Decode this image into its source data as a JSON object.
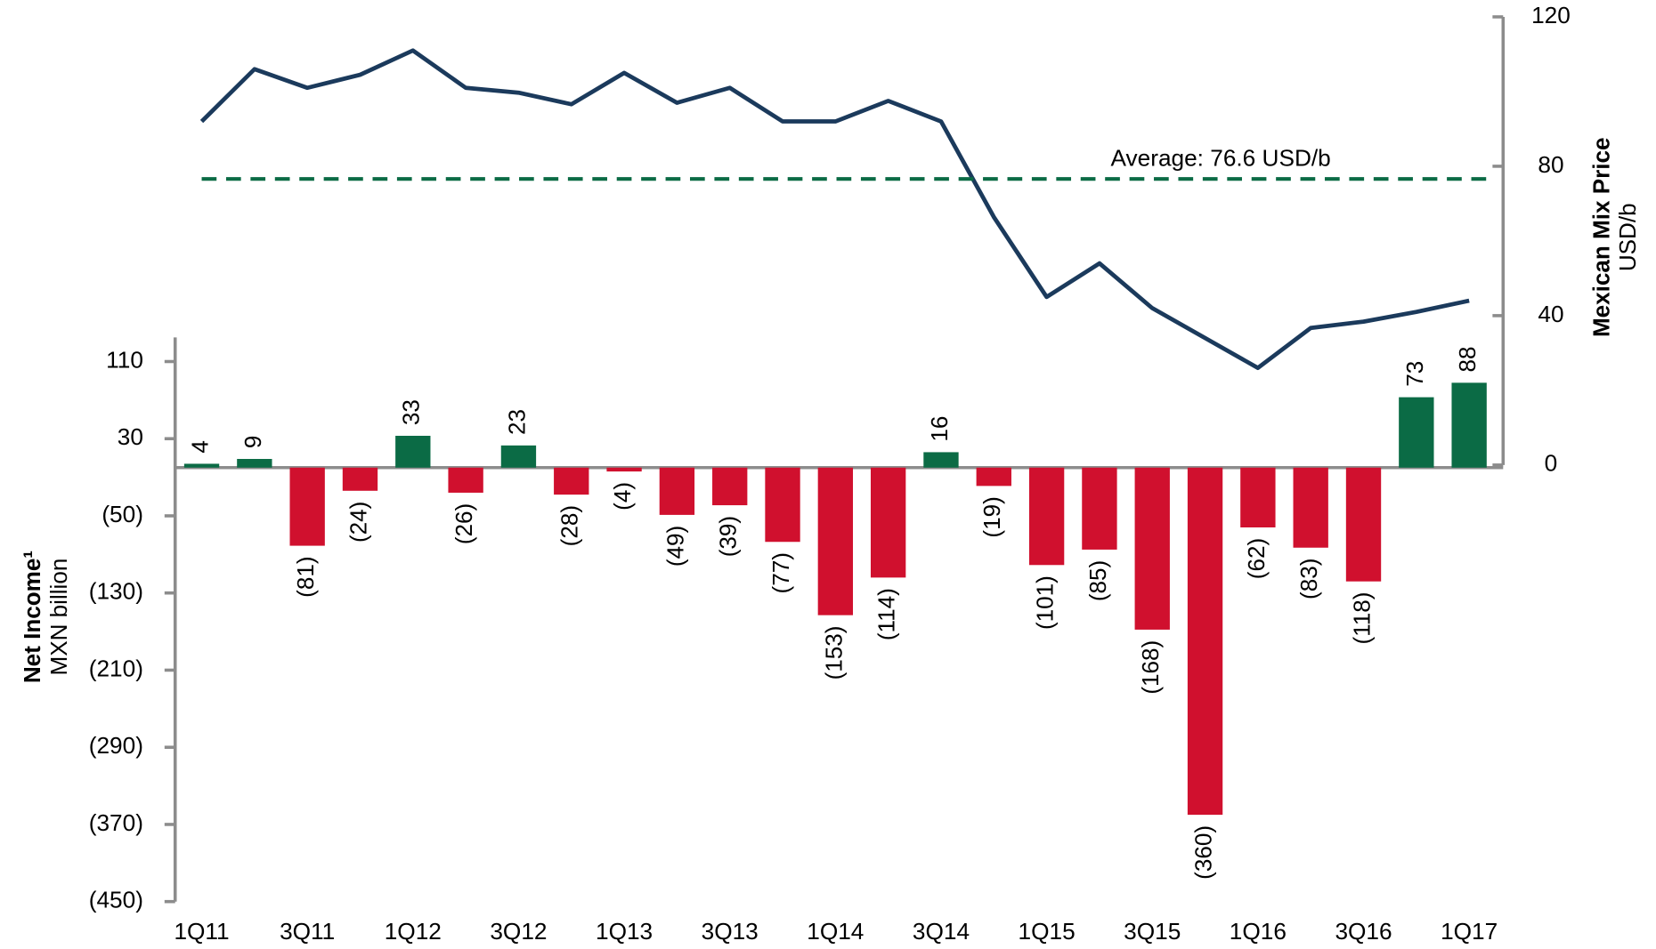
{
  "chart_data": {
    "type": "bar_line",
    "categories": [
      "1Q11",
      null,
      "3Q11",
      null,
      "1Q12",
      null,
      "3Q12",
      null,
      "1Q13",
      null,
      "3Q13",
      null,
      "1Q14",
      null,
      "3Q14",
      null,
      "1Q15",
      null,
      "3Q15",
      null,
      "1Q16",
      null,
      "3Q16",
      null,
      "1Q17"
    ],
    "series": [
      {
        "name": "Net Income",
        "type": "bar",
        "positive_color": "#0b6b45",
        "negative_color": "#d0102e",
        "values": [
          4,
          9,
          -81,
          -24,
          33,
          -26,
          23,
          -28,
          -4,
          -49,
          -39,
          -77,
          -153,
          -114,
          16,
          -19,
          -101,
          -85,
          -168,
          -360,
          -62,
          -83,
          -118,
          73,
          88
        ],
        "value_labels": [
          "4",
          "9",
          "(81)",
          "(24)",
          "33",
          "(26)",
          "23",
          "(28)",
          "(4)",
          "(49)",
          "(39)",
          "(77)",
          "(153)",
          "(114)",
          "16",
          "(19)",
          "(101)",
          "(85)",
          "(168)",
          "(360)",
          "(62)",
          "(83)",
          "(118)",
          "73",
          "88"
        ]
      },
      {
        "name": "Mexican Mix Price",
        "type": "line",
        "axis": "y2",
        "color": "#1b3a5c",
        "values": [
          92,
          106,
          101,
          104.5,
          111,
          101,
          99.7,
          96.6,
          105,
          97,
          101,
          92,
          92,
          97.5,
          92,
          66.4,
          45,
          54,
          42,
          34,
          26,
          36.7,
          38.4,
          41,
          44
        ]
      }
    ],
    "average": {
      "value": 76.6,
      "label": "Average: 76.6 USD/b",
      "color": "#0b6b45"
    },
    "y_title": "Net Income¹",
    "y_subtitle": "MXN billion",
    "y2_title": "Mexican Mix Price",
    "y2_subtitle": "USD/b",
    "ylim": [
      -450,
      135
    ],
    "yticks": [
      110,
      30,
      {
        "value": -50,
        "label": "(50)"
      },
      {
        "value": -130,
        "label": "(130)"
      },
      {
        "value": -210,
        "label": "(210)"
      },
      {
        "value": -290,
        "label": "(290)"
      },
      {
        "value": -370,
        "label": "(370)"
      },
      {
        "value": -450,
        "label": "(450)"
      }
    ],
    "y2lim": [
      0,
      120
    ],
    "y2ticks": [
      0,
      40,
      80,
      120
    ]
  }
}
